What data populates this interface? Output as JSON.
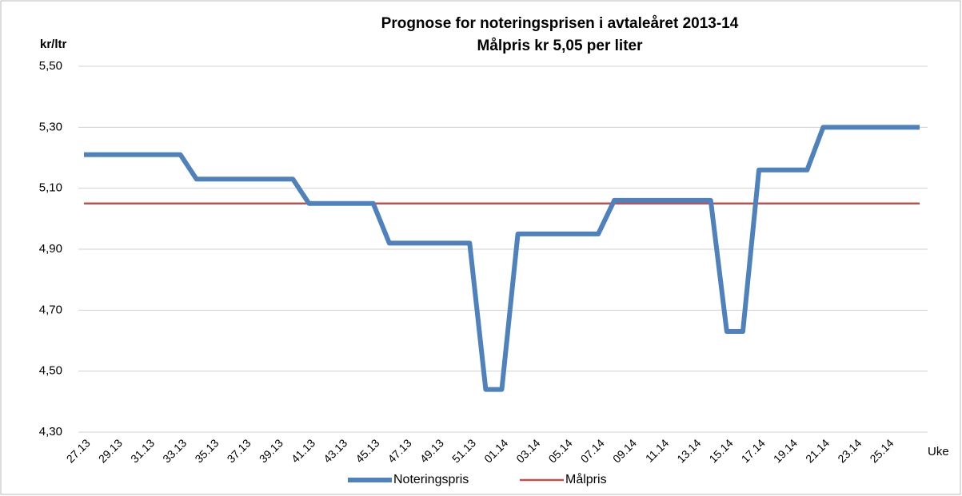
{
  "chart_data": {
    "type": "line",
    "title": "Prognose for noteringsprisen i  avtaleåret 2013-14",
    "subtitle": "Målpris kr 5,05 per liter",
    "y_label": "kr/ltr",
    "x_label": "Uke",
    "categories": [
      "27.13",
      null,
      "29.13",
      null,
      "31.13",
      null,
      "33.13",
      null,
      "35.13",
      null,
      "37.13",
      null,
      "39.13",
      null,
      "41.13",
      null,
      "43.13",
      null,
      "45.13",
      null,
      "47.13",
      null,
      "49.13",
      null,
      "51.13",
      null,
      "01.14",
      null,
      "03.14",
      null,
      "05.14",
      null,
      "07.14",
      null,
      "09.14",
      null,
      "11.14",
      null,
      "13.14",
      null,
      "15.14",
      null,
      "17.14",
      null,
      "19.14",
      null,
      "21.14",
      null,
      "23.14",
      null,
      "25.14",
      null,
      null
    ],
    "series": [
      {
        "name": "Noteringspris",
        "color": "#4f81bd",
        "values": [
          5.21,
          5.21,
          5.21,
          5.21,
          5.21,
          5.21,
          5.21,
          5.13,
          5.13,
          5.13,
          5.13,
          5.13,
          5.13,
          5.13,
          5.05,
          5.05,
          5.05,
          5.05,
          5.05,
          4.92,
          4.92,
          4.92,
          4.92,
          4.92,
          4.92,
          4.44,
          4.44,
          4.95,
          4.95,
          4.95,
          4.95,
          4.95,
          4.95,
          5.06,
          5.06,
          5.06,
          5.06,
          5.06,
          5.06,
          5.06,
          4.63,
          4.63,
          5.16,
          5.16,
          5.16,
          5.16,
          5.3,
          5.3,
          5.3,
          5.3,
          5.3,
          5.3,
          5.3
        ]
      },
      {
        "name": "Målpris",
        "color": "#c0504d",
        "values": [
          5.05,
          5.05,
          5.05,
          5.05,
          5.05,
          5.05,
          5.05,
          5.05,
          5.05,
          5.05,
          5.05,
          5.05,
          5.05,
          5.05,
          5.05,
          5.05,
          5.05,
          5.05,
          5.05,
          5.05,
          5.05,
          5.05,
          5.05,
          5.05,
          5.05,
          5.05,
          5.05,
          5.05,
          5.05,
          5.05,
          5.05,
          5.05,
          5.05,
          5.05,
          5.05,
          5.05,
          5.05,
          5.05,
          5.05,
          5.05,
          5.05,
          5.05,
          5.05,
          5.05,
          5.05,
          5.05,
          5.05,
          5.05,
          5.05,
          5.05,
          5.05,
          5.05,
          5.05
        ]
      }
    ],
    "ylim": [
      4.3,
      5.5
    ],
    "yticks": [
      {
        "value": 4.3,
        "label": "4,30"
      },
      {
        "value": 4.5,
        "label": "4,50"
      },
      {
        "value": 4.7,
        "label": "4,70"
      },
      {
        "value": 4.9,
        "label": "4,90"
      },
      {
        "value": 5.1,
        "label": "5,10"
      },
      {
        "value": 5.3,
        "label": "5,30"
      },
      {
        "value": 5.5,
        "label": "5,50"
      }
    ],
    "grid": true,
    "legend": "bottom"
  }
}
